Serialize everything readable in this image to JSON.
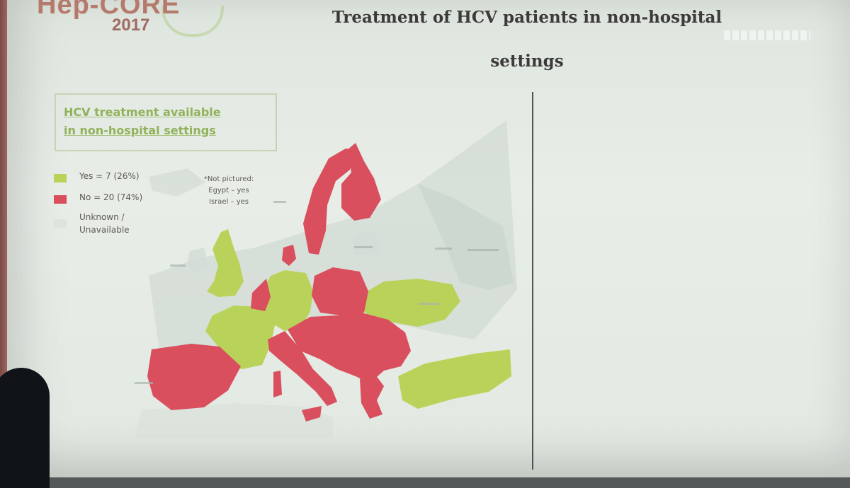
{
  "logo": {
    "name": "Hep-CORE",
    "year": "2017"
  },
  "slide": {
    "title_line1": "Treatment of HCV patients in non-hospital",
    "title_line2": "settings"
  },
  "map": {
    "box_title_line1": "HCV treatment available",
    "box_title_line2": "in non-hospital settings",
    "legend": [
      {
        "label": "Yes = 7 (26%)",
        "color": "#b9d35a"
      },
      {
        "label": "No = 20 (74%)",
        "color": "#d94f5e"
      },
      {
        "label_line1": "Unknown /",
        "label_line2": "Unavailable",
        "color": "#dce4dc"
      }
    ],
    "note_lines": [
      "*Not pictured:",
      "Egypt – yes",
      "Israel – yes"
    ],
    "colors": {
      "yes": "#b9d35a",
      "no": "#d94f5e",
      "unknown": "#d4ddd6",
      "sea": "#e6ece6"
    }
  }
}
